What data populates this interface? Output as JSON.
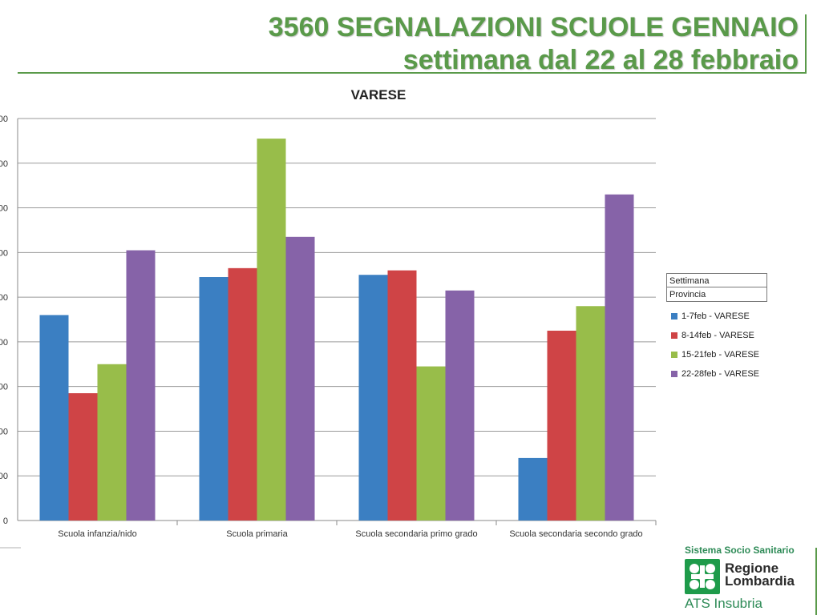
{
  "header": {
    "title_line1": "3560 SEGNALAZIONI SCUOLE GENNAIO",
    "title_line2": "settimana dal 22 al 28 febbraio"
  },
  "legend": {
    "header1": "Settimana",
    "header2": "Provincia"
  },
  "branding": {
    "top_text": "Sistema Socio Sanitario",
    "name_line1": "Regione",
    "name_line2": "Lombardia",
    "ats": "ATS Insubria",
    "logo_icon": "regione-lombardia-rose-icon",
    "color": "#1e9b4a"
  },
  "chart_data": {
    "type": "bar",
    "title": "VARESE",
    "categories": [
      "Scuola infanzia/nido",
      "Scuola primaria",
      "Scuola secondaria primo grado",
      "Scuola secondaria secondo grado"
    ],
    "series": [
      {
        "name": "1-7feb - VARESE",
        "color": "#3b7fc2",
        "values": [
          46,
          54.5,
          55,
          14
        ]
      },
      {
        "name": "8-14feb - VARESE",
        "color": "#cf4446",
        "values": [
          28.5,
          56.5,
          56,
          42.5
        ]
      },
      {
        "name": "15-21feb - VARESE",
        "color": "#98bd4a",
        "values": [
          35,
          85.5,
          34.5,
          48
        ]
      },
      {
        "name": "22-28feb - VARESE",
        "color": "#8663a8",
        "values": [
          60.5,
          63.5,
          51.5,
          73
        ]
      }
    ],
    "ylim": [
      0,
      90
    ],
    "yticks_visible": [
      "0",
      "00",
      "00",
      "00",
      "00",
      "00",
      "00",
      "00",
      "00",
      "00"
    ],
    "grid": true,
    "legend_position": "right"
  }
}
